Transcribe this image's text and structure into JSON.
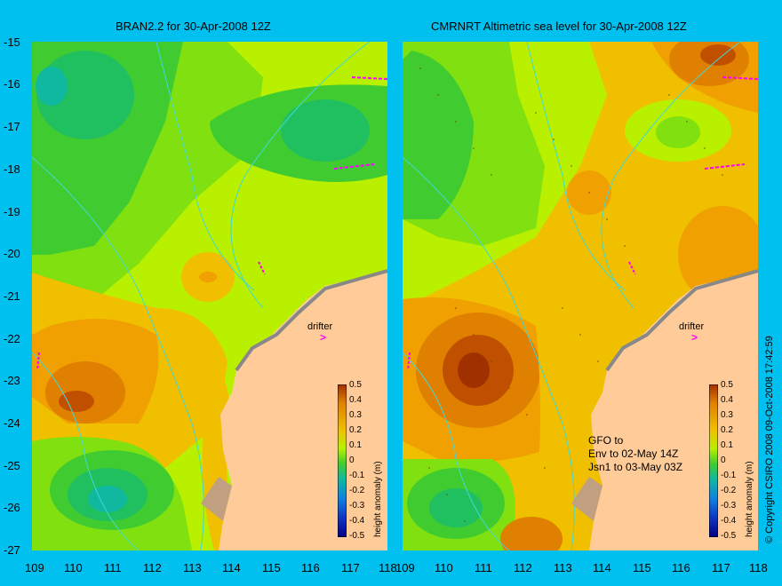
{
  "titles": {
    "left": "BRAN2.2 for 30-Apr-2008 12Z",
    "right": "CMRNRT Altimetric sea level  for 30-Apr-2008 12Z"
  },
  "axes": {
    "y_ticks": [
      "-15",
      "-16",
      "-17",
      "-18",
      "-19",
      "-20",
      "-21",
      "-22",
      "-23",
      "-24",
      "-25",
      "-26",
      "-27"
    ],
    "x_ticks_left": [
      "109",
      "110",
      "111",
      "112",
      "113",
      "114",
      "115",
      "116",
      "117",
      "118"
    ],
    "x_ticks_right": [
      "109",
      "110",
      "111",
      "112",
      "113",
      "114",
      "115",
      "116",
      "117",
      "118"
    ]
  },
  "colorbar": {
    "ticks": [
      "0.5",
      "0.4",
      "0.3",
      "0.2",
      "0.1",
      "0",
      "-0.1",
      "-0.2",
      "-0.3",
      "-0.4",
      "-0.5"
    ],
    "label": "height anomaly (m)"
  },
  "annotations": {
    "drifter": "drifter",
    "drifter_arrow": ">",
    "satellite_lines": [
      "GFO to",
      "Env to 02-May 14Z",
      "Jsn1 to 03-May 03Z"
    ]
  },
  "copyright": "© Copyright CSIRO 2008   09-Oct-2008 17:42:59",
  "colors": {
    "background": "#00c0f0",
    "land": "#ffcc99",
    "coastline": "#40d8d8",
    "drifter_track": "#ff00ff"
  }
}
